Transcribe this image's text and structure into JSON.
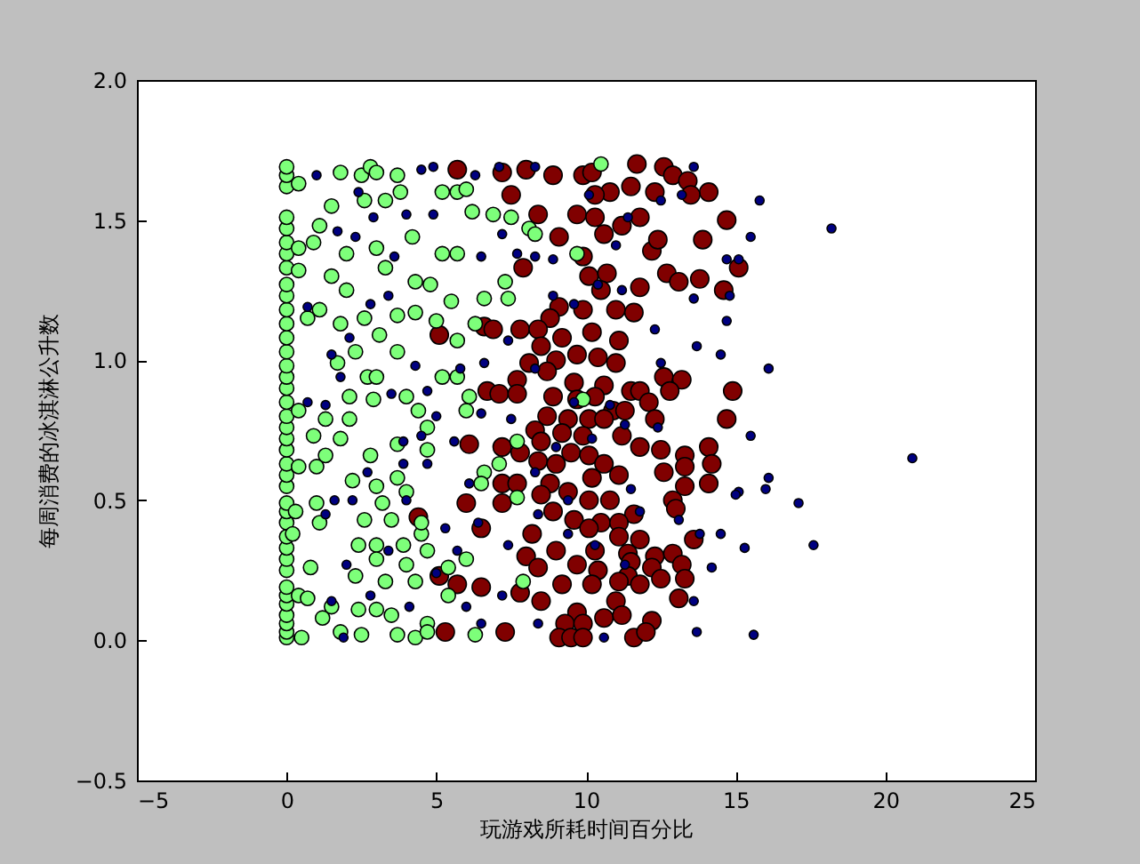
{
  "chart_data": {
    "type": "scatter",
    "xlabel": "玩游戏所耗时间百分比",
    "ylabel": "每周消费的冰淇淋公升数",
    "xlim": [
      -5,
      25
    ],
    "xticks": [
      {
        "value": -5,
        "label": "−5"
      },
      0,
      5,
      10,
      15,
      20,
      25
    ],
    "ylim": [
      -0.5,
      2.0
    ],
    "yticks": [
      {
        "value": -0.5,
        "label": "−0.5"
      },
      {
        "value": 0,
        "label": "0.0"
      },
      0.5,
      {
        "value": 1,
        "label": "1.0"
      },
      1.5,
      {
        "value": 2,
        "label": "2.0"
      }
    ],
    "grid": false,
    "marker": "circle",
    "series": [
      {
        "color": "#000080",
        "x": [
          1.0,
          4.5,
          4.9,
          6.3,
          7.1,
          8.3,
          13.6,
          15.8,
          18.2,
          15.5,
          13.6,
          13.7,
          14.5,
          16.1,
          14.7,
          14.8,
          15.5,
          16.1,
          16.0,
          17.1,
          17.6,
          20.9,
          15.1,
          15.0,
          15.3,
          14.5,
          14.2,
          13.6,
          13.7,
          15.6,
          13.8,
          13.1,
          12.3,
          11.0,
          12.5,
          2.4,
          1.7,
          2.9,
          2.3,
          3.6,
          4.0,
          4.9,
          6.5,
          7.2,
          7.7,
          8.3,
          8.9,
          0.7,
          2.1,
          2.8,
          3.4,
          1.5,
          4.3,
          1.8,
          3.5,
          4.7,
          0.7,
          5.0,
          6.5,
          5.6,
          4.5,
          1.3,
          2.7,
          3.9,
          4.7,
          6.1,
          1.6,
          2.2,
          4.0,
          5.3,
          6.4,
          8.4,
          9.4,
          10.3,
          1.3,
          3.4,
          2.0,
          5.0,
          6.0,
          6.5,
          7.2,
          1.5,
          2.8,
          4.1,
          1.9,
          8.4,
          10.6,
          11.3,
          11.8,
          12.4,
          11.3,
          11.5,
          9.4,
          8.3,
          9.6,
          10.2,
          10.8,
          9.0,
          8.3,
          9.6,
          10.4,
          8.9,
          11.2,
          10.1,
          11.4,
          12.5,
          14.7,
          15.1,
          13.2,
          7.4,
          6.6,
          5.8,
          7.5,
          7.4,
          5.7,
          3.9
        ],
        "values": [
          1.66,
          1.68,
          1.69,
          1.66,
          1.69,
          1.69,
          1.69,
          1.57,
          1.47,
          1.44,
          1.22,
          1.05,
          1.02,
          0.97,
          1.14,
          1.23,
          0.73,
          0.58,
          0.54,
          0.49,
          0.34,
          0.65,
          0.53,
          0.52,
          0.33,
          0.38,
          0.26,
          0.14,
          0.03,
          0.02,
          0.38,
          0.43,
          1.11,
          1.41,
          0.99,
          1.6,
          1.46,
          1.51,
          1.44,
          1.37,
          1.52,
          1.52,
          1.37,
          1.45,
          1.38,
          1.37,
          1.23,
          1.19,
          1.08,
          1.2,
          1.23,
          1.02,
          0.98,
          0.94,
          0.88,
          0.89,
          0.85,
          0.8,
          0.81,
          0.71,
          0.73,
          0.84,
          0.6,
          0.63,
          0.63,
          0.56,
          0.5,
          0.5,
          0.5,
          0.4,
          0.42,
          0.45,
          0.38,
          0.34,
          0.45,
          0.32,
          0.27,
          0.24,
          0.12,
          0.06,
          0.16,
          0.14,
          0.16,
          0.12,
          0.01,
          0.06,
          0.01,
          0.27,
          0.46,
          0.76,
          0.77,
          0.54,
          0.5,
          0.97,
          0.85,
          0.72,
          0.84,
          0.69,
          0.6,
          1.2,
          1.27,
          1.36,
          1.25,
          1.59,
          1.51,
          1.57,
          1.36,
          1.36,
          1.59,
          1.07,
          0.99,
          0.97,
          0.79,
          0.34,
          0.32,
          0.71
        ]
      },
      {
        "color": "#7dff7a",
        "x": [
          0,
          0,
          0,
          0,
          0,
          0,
          0,
          0,
          0,
          0,
          0,
          0,
          0,
          0,
          0,
          0,
          0,
          0,
          0,
          0,
          0,
          0,
          0,
          0,
          0,
          0,
          0,
          0,
          0,
          0,
          0,
          0,
          0,
          0,
          0,
          0,
          0,
          0,
          0,
          0.4,
          1.8,
          2.5,
          2.8,
          3.0,
          3.7,
          3.8,
          3.3,
          2.6,
          1.5,
          5.2,
          5.7,
          6.0,
          6.2,
          6.9,
          7.5,
          8.1,
          8.3,
          4.2,
          1.1,
          0.9,
          0.4,
          2.0,
          3.0,
          5.2,
          5.7,
          9.7,
          0.4,
          1.5,
          3.3,
          4.3,
          4.8,
          2.0,
          5.5,
          6.6,
          7.4,
          7.3,
          1.1,
          0.7,
          1.8,
          2.6,
          3.1,
          3.7,
          4.3,
          5.0,
          5.7,
          6.3,
          1.7,
          2.3,
          3.7,
          2.7,
          3.0,
          5.2,
          5.7,
          2.1,
          2.9,
          4.0,
          4.4,
          0.4,
          1.3,
          2.1,
          4.7,
          6.0,
          6.1,
          0.9,
          1.8,
          1.3,
          2.8,
          3.7,
          4.7,
          7.1,
          6.6,
          0.4,
          1.0,
          2.2,
          3.0,
          3.7,
          4.0,
          6.5,
          7.7,
          1.0,
          0.3,
          3.2,
          3.5,
          4.5,
          4.5,
          2.6,
          1.1,
          0.2,
          2.4,
          3.0,
          3.9,
          4.7,
          4.0,
          3.0,
          0.8,
          5.4,
          6.0,
          2.3,
          3.3,
          4.3,
          5.4,
          7.9,
          0.4,
          0.7,
          1.5,
          1.2,
          2.4,
          3.0,
          3.5,
          4.7,
          1.8,
          2.5,
          0.5,
          4.3,
          3.7,
          4.7,
          6.3,
          10.5,
          9.9,
          7.7
        ],
        "values": [
          0.01,
          0.03,
          0.06,
          0.09,
          0.13,
          0.16,
          0.19,
          0.25,
          0.29,
          0.33,
          0.37,
          0.42,
          0.46,
          0.49,
          0.55,
          0.59,
          0.63,
          0.68,
          0.72,
          0.76,
          0.8,
          0.85,
          0.9,
          0.94,
          0.98,
          1.03,
          1.08,
          1.13,
          1.18,
          1.23,
          1.27,
          1.33,
          1.38,
          1.42,
          1.47,
          1.51,
          1.62,
          1.66,
          1.69,
          1.63,
          1.67,
          1.66,
          1.69,
          1.67,
          1.66,
          1.6,
          1.57,
          1.57,
          1.55,
          1.6,
          1.6,
          1.61,
          1.53,
          1.52,
          1.51,
          1.47,
          1.45,
          1.44,
          1.48,
          1.42,
          1.4,
          1.38,
          1.4,
          1.38,
          1.38,
          1.38,
          1.32,
          1.3,
          1.33,
          1.28,
          1.27,
          1.25,
          1.21,
          1.22,
          1.22,
          1.28,
          1.18,
          1.15,
          1.13,
          1.15,
          1.09,
          1.16,
          1.17,
          1.14,
          1.07,
          1.13,
          0.99,
          1.03,
          1.03,
          0.94,
          0.94,
          0.94,
          0.94,
          0.87,
          0.86,
          0.87,
          0.82,
          0.82,
          0.79,
          0.79,
          0.76,
          0.82,
          0.87,
          0.73,
          0.72,
          0.66,
          0.66,
          0.7,
          0.68,
          0.63,
          0.6,
          0.62,
          0.62,
          0.57,
          0.55,
          0.58,
          0.53,
          0.56,
          0.51,
          0.49,
          0.46,
          0.49,
          0.43,
          0.38,
          0.42,
          0.43,
          0.42,
          0.38,
          0.34,
          0.34,
          0.34,
          0.32,
          0.27,
          0.29,
          0.26,
          0.26,
          0.29,
          0.23,
          0.21,
          0.21,
          0.16,
          0.21,
          0.16,
          0.15,
          0.12,
          0.08,
          0.11,
          0.11,
          0.09,
          0.06,
          0.03,
          0.02,
          0.01,
          0.01,
          0.02,
          0.03,
          0.02,
          1.7,
          0.86,
          0.71
        ]
      },
      {
        "color": "#800000",
        "x": [
          5.7,
          7.2,
          8.0,
          8.9,
          9.9,
          10.2,
          11.7,
          12.6,
          12.9,
          13.4,
          14.1,
          12.3,
          13.5,
          11.5,
          10.8,
          10.3,
          7.5,
          8.4,
          9.7,
          10.3,
          10.6,
          11.2,
          11.8,
          14.7,
          13.9,
          12.2,
          12.4,
          9.1,
          7.9,
          9.9,
          10.1,
          10.7,
          12.7,
          13.8,
          13.1,
          14.6,
          15.1,
          10.5,
          11.8,
          9.1,
          9.9,
          11.0,
          8.8,
          11.6,
          6.6,
          5.1,
          7.8,
          8.4,
          10.2,
          9.2,
          6.9,
          11.1,
          8.5,
          9.7,
          9.0,
          8.1,
          10.4,
          11.0,
          8.7,
          7.7,
          12.6,
          13.2,
          9.6,
          10.6,
          11.5,
          11.8,
          14.9,
          6.7,
          7.1,
          7.7,
          8.9,
          9.7,
          10.3,
          12.1,
          12.8,
          10.9,
          11.3,
          12.3,
          14.7,
          8.7,
          9.4,
          10.1,
          10.6,
          8.3,
          9.2,
          9.9,
          11.2,
          8.5,
          7.2,
          6.1,
          7.8,
          9.5,
          10.1,
          11.8,
          12.5,
          13.3,
          14.1,
          8.4,
          9.0,
          10.6,
          14.2,
          13.3,
          12.6,
          11.1,
          10.2,
          7.2,
          7.7,
          8.8,
          14.1,
          13.3,
          9.4,
          8.5,
          10.1,
          10.8,
          7.2,
          6.0,
          12.9,
          13.0,
          8.9,
          11.6,
          9.6,
          10.5,
          11.1,
          4.4,
          6.5,
          8.2,
          10.1,
          11.1,
          13.6,
          11.8,
          9.0,
          8.0,
          10.3,
          11.4,
          12.3,
          12.9,
          13.2,
          12.2,
          8.4,
          9.7,
          10.4,
          11.5,
          11.4,
          13.3,
          12.5,
          5.1,
          5.7,
          6.5,
          7.8,
          8.5,
          9.2,
          10.2,
          11.1,
          11.8,
          13.1,
          11.0,
          9.7,
          10.6,
          11.2,
          12.2,
          9.3,
          9.9,
          5.3,
          7.3,
          9.1,
          9.5,
          9.9,
          11.6,
          12.0
        ],
        "values": [
          1.68,
          1.67,
          1.68,
          1.66,
          1.66,
          1.67,
          1.7,
          1.69,
          1.66,
          1.64,
          1.6,
          1.6,
          1.59,
          1.62,
          1.6,
          1.59,
          1.59,
          1.52,
          1.52,
          1.51,
          1.45,
          1.48,
          1.51,
          1.5,
          1.43,
          1.39,
          1.43,
          1.44,
          1.33,
          1.37,
          1.3,
          1.31,
          1.31,
          1.29,
          1.28,
          1.25,
          1.33,
          1.25,
          1.26,
          1.19,
          1.18,
          1.18,
          1.15,
          1.17,
          1.12,
          1.09,
          1.11,
          1.11,
          1.1,
          1.08,
          1.11,
          1.07,
          1.05,
          1.02,
          1.0,
          0.99,
          1.01,
          0.99,
          0.96,
          0.93,
          0.94,
          0.93,
          0.92,
          0.91,
          0.89,
          0.89,
          0.89,
          0.89,
          0.88,
          0.88,
          0.87,
          0.86,
          0.87,
          0.85,
          0.89,
          0.82,
          0.82,
          0.79,
          0.79,
          0.8,
          0.79,
          0.79,
          0.79,
          0.75,
          0.74,
          0.73,
          0.73,
          0.71,
          0.69,
          0.7,
          0.67,
          0.67,
          0.66,
          0.69,
          0.68,
          0.66,
          0.69,
          0.64,
          0.63,
          0.63,
          0.63,
          0.62,
          0.6,
          0.59,
          0.58,
          0.56,
          0.56,
          0.56,
          0.56,
          0.55,
          0.53,
          0.52,
          0.5,
          0.5,
          0.49,
          0.49,
          0.5,
          0.47,
          0.46,
          0.45,
          0.43,
          0.42,
          0.42,
          0.44,
          0.4,
          0.38,
          0.4,
          0.37,
          0.36,
          0.36,
          0.32,
          0.3,
          0.32,
          0.31,
          0.3,
          0.31,
          0.27,
          0.26,
          0.26,
          0.27,
          0.25,
          0.28,
          0.23,
          0.22,
          0.22,
          0.23,
          0.2,
          0.19,
          0.17,
          0.14,
          0.2,
          0.2,
          0.21,
          0.2,
          0.15,
          0.14,
          0.1,
          0.08,
          0.09,
          0.07,
          0.06,
          0.06,
          0.03,
          0.03,
          0.01,
          0.01,
          0.01,
          0.01,
          0.03
        ]
      }
    ]
  }
}
